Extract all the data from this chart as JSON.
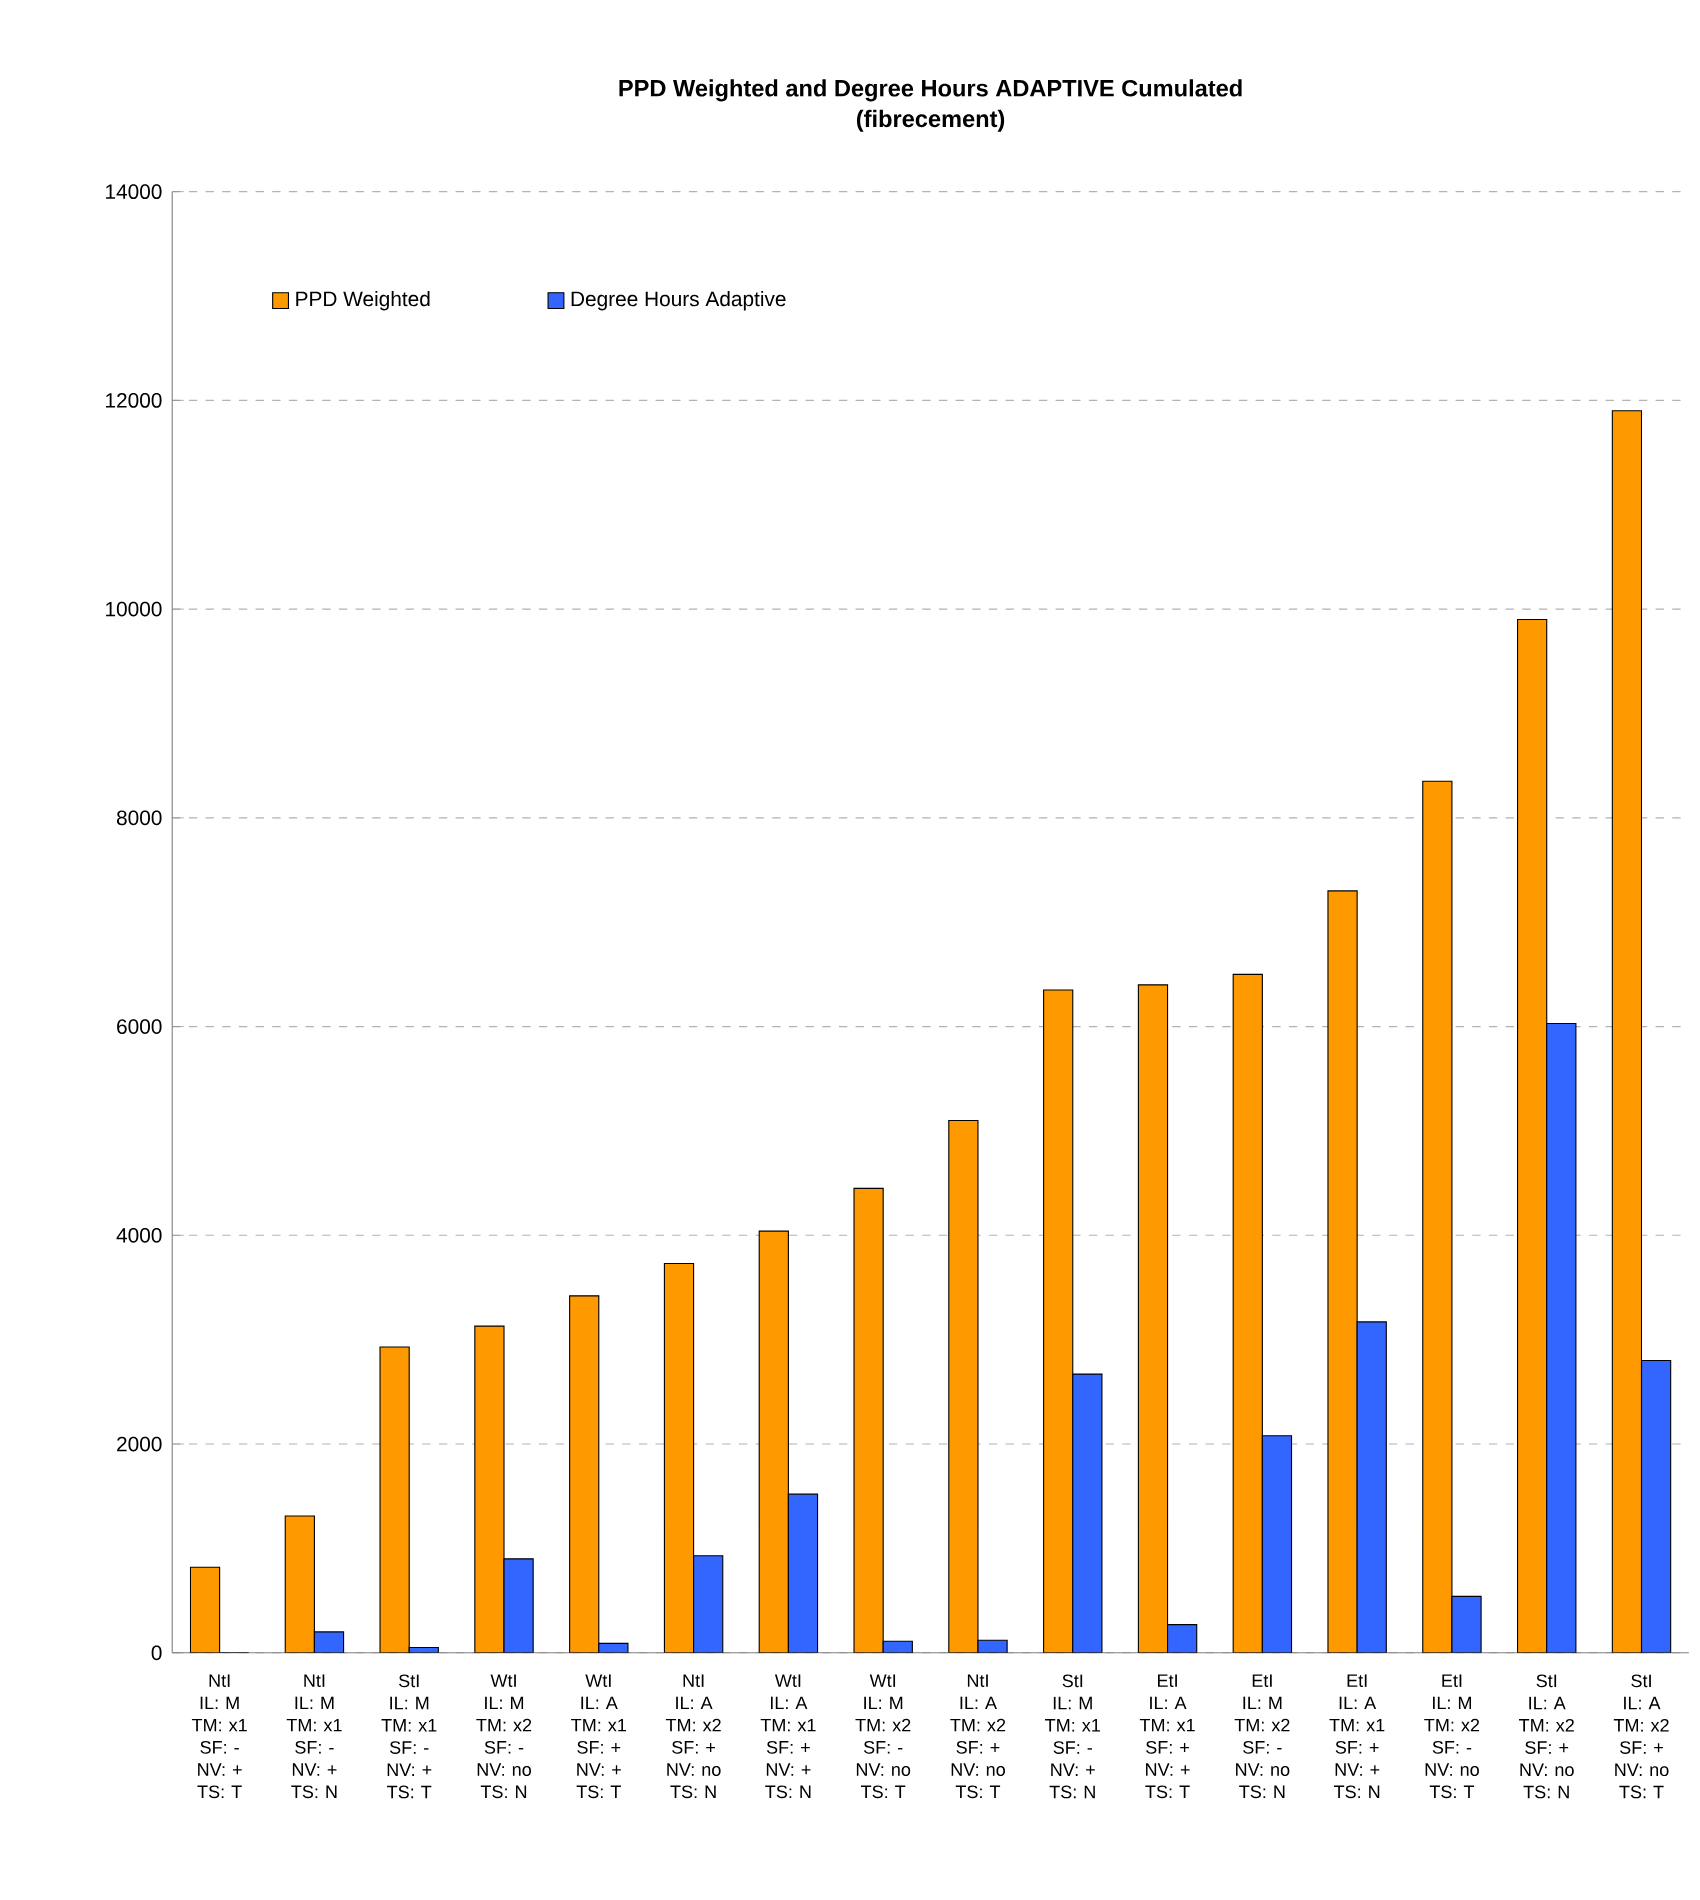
{
  "chart_data": {
    "type": "bar",
    "title": "PPD Weighted and Degree Hours ADAPTIVE Cumulated",
    "subtitle": "(fibrecement)",
    "categories": [
      "NtI\nIL: M\nTM: x1\nSF: -\nNV: +\nTS: T",
      "NtI\nIL: M\nTM: x1\nSF: -\nNV: +\nTS: N",
      "StI\nIL: M\nTM: x1\nSF: -\nNV: +\nTS: T",
      "WtI\nIL: M\nTM: x2\nSF: -\nNV: no\nTS: N",
      "WtI\nIL: A\nTM: x1\nSF: +\nNV: +\nTS: T",
      "NtI\nIL: A\nTM: x2\nSF: +\nNV: no\nTS: N",
      "WtI\nIL: A\nTM: x1\nSF: +\nNV: +\nTS: N",
      "WtI\nIL: M\nTM: x2\nSF: -\nNV: no\nTS: T",
      "NtI\nIL: A\nTM: x2\nSF: +\nNV: no\nTS: T",
      "StI\nIL: M\nTM: x1\nSF: -\nNV: +\nTS: N",
      "EtI\nIL: A\nTM: x1\nSF: +\nNV: +\nTS: T",
      "EtI\nIL: M\nTM: x2\nSF: -\nNV: no\nTS: N",
      "EtI\nIL: A\nTM: x1\nSF: +\nNV: +\nTS: N",
      "EtI\nIL: M\nTM: x2\nSF: -\nNV: no\nTS: T",
      "StI\nIL: A\nTM: x2\nSF: +\nNV: no\nTS: N",
      "StI\nIL: A\nTM: x2\nSF: +\nNV: no\nTS: T"
    ],
    "series": [
      {
        "name": "PPD Weighted",
        "color": "#ff9900",
        "values": [
          820,
          1310,
          2930,
          3130,
          3420,
          3730,
          4040,
          4450,
          5100,
          6350,
          6400,
          6500,
          7300,
          8350,
          9900,
          11900
        ]
      },
      {
        "name": "Degree Hours Adaptive",
        "color": "#3366ff",
        "values": [
          0,
          200,
          50,
          900,
          90,
          930,
          1520,
          110,
          120,
          2670,
          270,
          2080,
          3170,
          540,
          6030,
          2800
        ]
      }
    ],
    "ylim": [
      0,
      14000
    ],
    "yticks": [
      0,
      2000,
      4000,
      6000,
      8000,
      10000,
      12000,
      14000
    ],
    "grid": "y",
    "legend": "top left"
  }
}
